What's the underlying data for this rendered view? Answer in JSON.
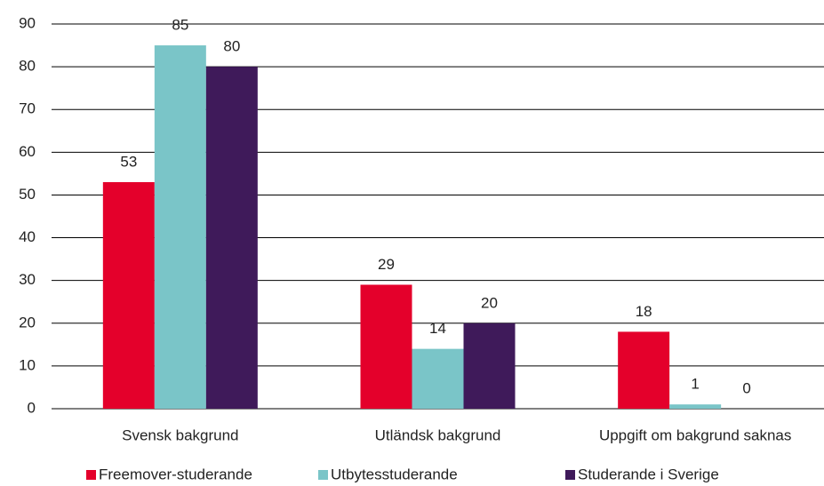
{
  "chart_data": {
    "type": "bar",
    "categories": [
      "Svensk bakgrund",
      "Utländsk bakgrund",
      "Uppgift om bakgrund saknas"
    ],
    "series": [
      {
        "name": "Freemover-studerande",
        "color": "#e4002b",
        "values": [
          53,
          29,
          18
        ]
      },
      {
        "name": "Utbytesstuderande",
        "color": "#7ac5c8",
        "values": [
          85,
          14,
          1
        ]
      },
      {
        "name": "Studerande i Sverige",
        "color": "#3f1a5a",
        "values": [
          80,
          20,
          0
        ]
      }
    ],
    "ylim": [
      0,
      90
    ],
    "yticks": [
      0,
      10,
      20,
      30,
      40,
      50,
      60,
      70,
      80,
      90
    ],
    "grid": true,
    "legend": "bottom"
  }
}
